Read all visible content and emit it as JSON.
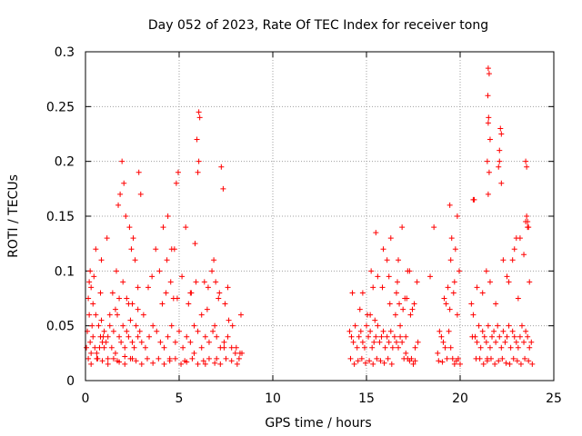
{
  "chart_data": {
    "type": "scatter",
    "title": "Day 052 of 2023, Rate Of TEC Index for receiver tong",
    "xlabel": "GPS time / hours",
    "ylabel": "ROTI / TECUs",
    "xlim": [
      0,
      25
    ],
    "ylim": [
      0,
      0.3
    ],
    "xticks": [
      0,
      5,
      10,
      15,
      20,
      25
    ],
    "xtick_labels": [
      "0",
      "5",
      "10",
      "15",
      "20",
      "25"
    ],
    "yticks": [
      0,
      0.05,
      0.1,
      0.15,
      0.2,
      0.25,
      0.3
    ],
    "ytick_labels": [
      "0",
      "0.05",
      "0.1",
      "0.15",
      "0.2",
      "0.25",
      "0.3"
    ],
    "grid": true,
    "marker": "plus",
    "color": "#ff0000",
    "series": [
      {
        "x": [
          0.05,
          0.1,
          0.15,
          0.2,
          0.25,
          0.3,
          0.35,
          0.4,
          0.2,
          0.25,
          0.3,
          0.15,
          0.5,
          0.6,
          0.7,
          0.8,
          0.9,
          1.0,
          0.55,
          0.65,
          0.75,
          0.85,
          0.95,
          1.1,
          1.2,
          1.3,
          1.4,
          1.5,
          1.6,
          1.7,
          1.8,
          1.9,
          2.0,
          2.1,
          2.2,
          2.3,
          2.4,
          2.5,
          2.6,
          2.7,
          2.8,
          2.9,
          3.0,
          3.2,
          3.4,
          3.6,
          3.8,
          4.0,
          4.2,
          4.4,
          4.6,
          4.8,
          5.0,
          5.2,
          5.4,
          5.6,
          5.8,
          6.0,
          6.2,
          6.4,
          6.6,
          6.8,
          7.0,
          7.2,
          7.4,
          7.6,
          7.8,
          8.0,
          8.2,
          0.3,
          0.6,
          0.9,
          1.2,
          1.5,
          1.8,
          2.1,
          2.4,
          2.7,
          3.0,
          3.3,
          3.6,
          3.9,
          4.2,
          4.5,
          4.8,
          5.1,
          5.4,
          5.7,
          6.0,
          6.3,
          6.6,
          6.9,
          7.2,
          7.5,
          7.8,
          8.1,
          0.4,
          0.8,
          1.6,
          2.0,
          2.2,
          2.5,
          2.8,
          3.1,
          4.3,
          4.7,
          5.5,
          5.9,
          6.5,
          7.1,
          1.75,
          1.85,
          1.95,
          2.05,
          2.35,
          2.45,
          2.55,
          2.85,
          2.95,
          4.4,
          4.6,
          4.85,
          4.95,
          5.95,
          6.05,
          6.1,
          6.0,
          6.05,
          6.75,
          6.85,
          7.25,
          7.35,
          0.45,
          0.55,
          0.85,
          1.15,
          1.45,
          1.65,
          2.15,
          2.65,
          3.35,
          3.55,
          3.75,
          3.95,
          4.15,
          4.35,
          4.55,
          4.75,
          5.15,
          5.35,
          5.65,
          5.85,
          6.35,
          6.55,
          6.95,
          7.15,
          7.45,
          7.65,
          7.85,
          8.05,
          8.25,
          1.3,
          1.8,
          2.3,
          2.8,
          4.1,
          4.9,
          5.6,
          6.2,
          6.9,
          7.6,
          8.3,
          8.35,
          1.0,
          1.2,
          1.7,
          2.1,
          2.5,
          4.5,
          5.3,
          5.8,
          6.4,
          7.0,
          7.4,
          14.1,
          14.2,
          14.3,
          14.4,
          14.5,
          14.6,
          14.7,
          14.8,
          14.9,
          15.0,
          15.1,
          15.2,
          15.3,
          15.4,
          15.5,
          15.6,
          15.7,
          15.8,
          15.9,
          16.0,
          16.1,
          16.2,
          16.3,
          16.4,
          16.5,
          16.6,
          16.7,
          16.8,
          16.9,
          17.0,
          17.1,
          17.2,
          17.3,
          17.4,
          17.5,
          17.6,
          14.15,
          14.35,
          14.55,
          14.75,
          14.95,
          15.15,
          15.35,
          15.55,
          15.75,
          15.95,
          16.15,
          16.35,
          16.55,
          16.75,
          16.95,
          17.15,
          17.35,
          17.55,
          14.25,
          14.65,
          15.05,
          15.45,
          15.85,
          16.25,
          16.65,
          17.05,
          17.45,
          14.8,
          15.2,
          15.6,
          15.9,
          16.3,
          16.7,
          17.2,
          17.7,
          15.5,
          16.2,
          16.9,
          17.3,
          15.25,
          15.35,
          16.1,
          16.6,
          16.8,
          17.1,
          17.6,
          17.75,
          18.8,
          18.9,
          19.0,
          19.1,
          19.2,
          19.3,
          19.4,
          19.5,
          19.6,
          19.7,
          19.8,
          19.9,
          20.0,
          18.85,
          19.05,
          19.25,
          19.45,
          19.65,
          19.85,
          19.15,
          19.35,
          19.55,
          19.75,
          19.95,
          19.5,
          19.7,
          19.45,
          19.85,
          18.4,
          18.6,
          20.6,
          20.7,
          20.8,
          20.9,
          21.0,
          21.1,
          21.2,
          21.3,
          21.4,
          21.5,
          21.6,
          21.7,
          21.8,
          21.9,
          22.0,
          22.1,
          22.2,
          22.3,
          22.4,
          22.5,
          22.6,
          22.7,
          22.8,
          22.9,
          23.0,
          23.1,
          23.2,
          23.3,
          23.4,
          23.5,
          23.6,
          23.7,
          23.8,
          20.65,
          20.85,
          21.05,
          21.25,
          21.45,
          21.65,
          21.85,
          22.05,
          22.25,
          22.45,
          22.65,
          22.85,
          23.05,
          23.25,
          23.45,
          23.65,
          23.85,
          21.45,
          21.5,
          21.55,
          21.52,
          21.48,
          22.1,
          22.15,
          22.2,
          22.1,
          22.05,
          22.2,
          21.5,
          21.55,
          21.45,
          21.6,
          21.5,
          23.55,
          23.6,
          23.65,
          23.5,
          23.55,
          20.75,
          20.7,
          22.9,
          23.0,
          22.8,
          23.5,
          23.6,
          21.4,
          21.6,
          22.3,
          22.5,
          23.2,
          23.4,
          20.9,
          21.2,
          21.9,
          22.6,
          23.1,
          23.7
        ],
        "y": [
          0.03,
          0.045,
          0.02,
          0.06,
          0.035,
          0.025,
          0.05,
          0.04,
          0.09,
          0.1,
          0.085,
          0.075,
          0.03,
          0.025,
          0.05,
          0.04,
          0.035,
          0.045,
          0.06,
          0.02,
          0.03,
          0.055,
          0.04,
          0.035,
          0.04,
          0.05,
          0.03,
          0.045,
          0.025,
          0.06,
          0.04,
          0.035,
          0.05,
          0.03,
          0.045,
          0.04,
          0.055,
          0.035,
          0.03,
          0.05,
          0.04,
          0.045,
          0.035,
          0.03,
          0.04,
          0.05,
          0.045,
          0.035,
          0.03,
          0.04,
          0.05,
          0.035,
          0.045,
          0.03,
          0.04,
          0.035,
          0.05,
          0.045,
          0.03,
          0.04,
          0.035,
          0.045,
          0.04,
          0.03,
          0.035,
          0.04,
          0.03,
          0.025,
          0.02,
          0.015,
          0.02,
          0.018,
          0.015,
          0.02,
          0.017,
          0.015,
          0.02,
          0.018,
          0.015,
          0.02,
          0.016,
          0.02,
          0.015,
          0.018,
          0.02,
          0.015,
          0.017,
          0.02,
          0.015,
          0.018,
          0.02,
          0.016,
          0.015,
          0.02,
          0.018,
          0.015,
          0.07,
          0.08,
          0.065,
          0.09,
          0.075,
          0.07,
          0.085,
          0.06,
          0.08,
          0.075,
          0.07,
          0.09,
          0.065,
          0.075,
          0.16,
          0.17,
          0.2,
          0.18,
          0.14,
          0.12,
          0.13,
          0.19,
          0.17,
          0.15,
          0.12,
          0.18,
          0.19,
          0.22,
          0.245,
          0.24,
          0.19,
          0.2,
          0.1,
          0.11,
          0.195,
          0.175,
          0.095,
          0.12,
          0.11,
          0.13,
          0.08,
          0.1,
          0.15,
          0.11,
          0.085,
          0.095,
          0.12,
          0.1,
          0.14,
          0.11,
          0.09,
          0.12,
          0.095,
          0.14,
          0.08,
          0.125,
          0.09,
          0.085,
          0.09,
          0.08,
          0.07,
          0.055,
          0.05,
          0.03,
          0.025,
          0.06,
          0.075,
          0.07,
          0.065,
          0.07,
          0.075,
          0.08,
          0.06,
          0.05,
          0.085,
          0.06,
          0.025,
          0.03,
          0.02,
          0.018,
          0.022,
          0.02,
          0.02,
          0.018,
          0.025,
          0.015,
          0.02,
          0.03,
          0.045,
          0.04,
          0.035,
          0.05,
          0.03,
          0.04,
          0.045,
          0.035,
          0.03,
          0.05,
          0.04,
          0.045,
          0.03,
          0.035,
          0.04,
          0.05,
          0.035,
          0.04,
          0.045,
          0.03,
          0.04,
          0.035,
          0.045,
          0.03,
          0.04,
          0.035,
          0.03,
          0.04,
          0.035,
          0.02,
          0.025,
          0.02,
          0.018,
          0.02,
          0.015,
          0.018,
          0.02,
          0.015,
          0.018,
          0.02,
          0.016,
          0.018,
          0.015,
          0.02,
          0.018,
          0.016,
          0.02,
          0.015,
          0.06,
          0.07,
          0.065,
          0.075,
          0.06,
          0.07,
          0.08,
          0.065,
          0.06,
          0.055,
          0.085,
          0.07,
          0.09,
          0.075,
          0.065,
          0.08,
          0.06,
          0.095,
          0.12,
          0.13,
          0.11,
          0.1,
          0.09,
          0.135,
          0.095,
          0.14,
          0.1,
          0.1,
          0.085,
          0.11,
          0.08,
          0.05,
          0.04,
          0.03,
          0.035,
          0.025,
          0.045,
          0.04,
          0.035,
          0.03,
          0.02,
          0.045,
          0.03,
          0.02,
          0.015,
          0.018,
          0.02,
          0.015,
          0.018,
          0.017,
          0.07,
          0.065,
          0.08,
          0.06,
          0.075,
          0.085,
          0.13,
          0.12,
          0.1,
          0.11,
          0.09,
          0.16,
          0.15,
          0.095,
          0.14,
          0.07,
          0.06,
          0.04,
          0.035,
          0.05,
          0.03,
          0.045,
          0.04,
          0.035,
          0.05,
          0.03,
          0.04,
          0.045,
          0.035,
          0.05,
          0.04,
          0.03,
          0.045,
          0.035,
          0.04,
          0.05,
          0.03,
          0.045,
          0.04,
          0.035,
          0.03,
          0.04,
          0.05,
          0.035,
          0.045,
          0.04,
          0.03,
          0.035,
          0.04,
          0.02,
          0.02,
          0.015,
          0.018,
          0.02,
          0.015,
          0.018,
          0.02,
          0.016,
          0.015,
          0.02,
          0.018,
          0.015,
          0.02,
          0.018,
          0.015,
          0.02,
          0.285,
          0.28,
          0.24,
          0.26,
          0.2,
          0.23,
          0.225,
          0.21,
          0.195,
          0.18,
          0.235,
          0.19,
          0.2,
          0.22,
          0.17,
          0.15,
          0.145,
          0.14,
          0.2,
          0.195,
          0.165,
          0.165,
          0.12,
          0.13,
          0.11,
          0.145,
          0.14,
          0.1,
          0.09,
          0.11,
          0.095,
          0.13,
          0.115,
          0.085,
          0.08,
          0.07,
          0.09,
          0.075,
          0.09
        ]
      }
    ]
  }
}
